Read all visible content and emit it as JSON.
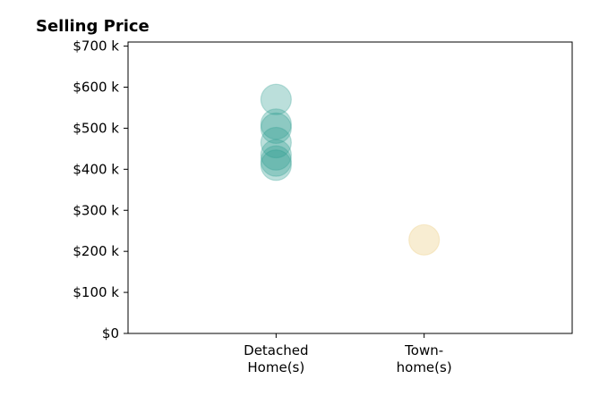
{
  "chart_data": {
    "type": "scatter",
    "title": "Selling Price",
    "xlabel": "",
    "ylabel": "",
    "categories": [
      {
        "lines": [
          "Detached",
          "Home(s)"
        ]
      },
      {
        "lines": [
          "Town-",
          "home(s)"
        ]
      }
    ],
    "xlim": [
      -1,
      2
    ],
    "ylim": [
      0,
      710000
    ],
    "y_ticks": [
      0,
      100000,
      200000,
      300000,
      400000,
      500000,
      600000,
      700000
    ],
    "y_tick_labels": [
      "$0",
      "$100 k",
      "$200 k",
      "$300 k",
      "$400 k",
      "$500 k",
      "$600 k",
      "$700 k"
    ],
    "grid": false,
    "series": [
      {
        "category_index": 0,
        "color": "#2a9d8f",
        "opacity": 0.32,
        "values": [
          570000,
          510000,
          500000,
          465000,
          435000,
          420000,
          410000
        ]
      },
      {
        "category_index": 1,
        "color": "#e9c46a",
        "opacity": 0.3,
        "values": [
          228000
        ]
      }
    ]
  }
}
